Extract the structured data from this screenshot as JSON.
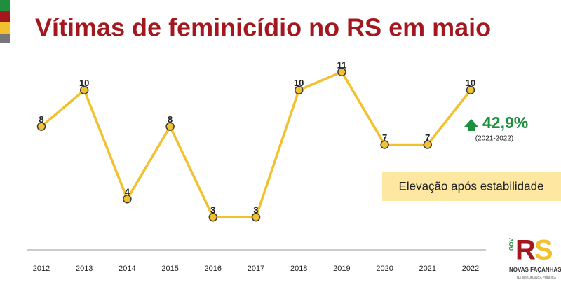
{
  "chart_data": {
    "type": "line",
    "title": "Vítimas de feminicídio no RS em maio",
    "categories": [
      "2012",
      "2013",
      "2014",
      "2015",
      "2016",
      "2017",
      "2018",
      "2019",
      "2020",
      "2021",
      "2022"
    ],
    "values": [
      8,
      10,
      4,
      8,
      3,
      3,
      10,
      11,
      7,
      7,
      10
    ],
    "color": "#f2c12e",
    "ylim": [
      1,
      13
    ],
    "annotations": {
      "change": "42,9%",
      "period": "(2021-2022)",
      "note": "Elevação após estabilidade"
    }
  },
  "logo": {
    "gov": "GOV",
    "r": "R",
    "s": "S",
    "slogan": "NOVAS FAÇANHAS",
    "subtitle": "NA SEGURANÇA PÚBLICA"
  }
}
